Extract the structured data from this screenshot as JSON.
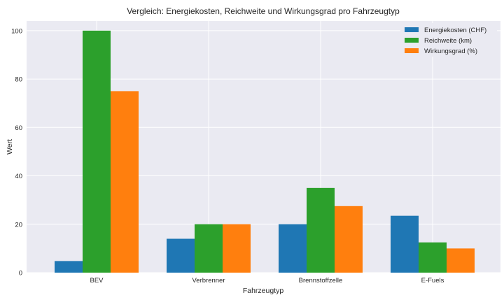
{
  "chart_data": {
    "type": "bar",
    "title": "Vergleich: Energiekosten, Reichweite und Wirkungsgrad pro Fahrzeugtyp",
    "xlabel": "Fahrzeugtyp",
    "ylabel": "Wert",
    "categories": [
      "BEV",
      "Verbrenner",
      "Brennstoffzelle",
      "E-Fuels"
    ],
    "series": [
      {
        "name": "Energiekosten (CHF)",
        "color": "#1f77b4",
        "values": [
          4.8,
          14,
          20,
          23.5
        ]
      },
      {
        "name": "Reichweite (km)",
        "color": "#2ca02c",
        "values": [
          100,
          20,
          35,
          12.5
        ]
      },
      {
        "name": "Wirkungsgrad (%)",
        "color": "#ff7f0e",
        "values": [
          75,
          20,
          27.5,
          10
        ]
      }
    ],
    "ylim": [
      0,
      104
    ],
    "yticks": [
      0,
      20,
      40,
      60,
      80,
      100
    ],
    "grid": true,
    "legend": "top-right",
    "background": "#eaeaf2"
  }
}
